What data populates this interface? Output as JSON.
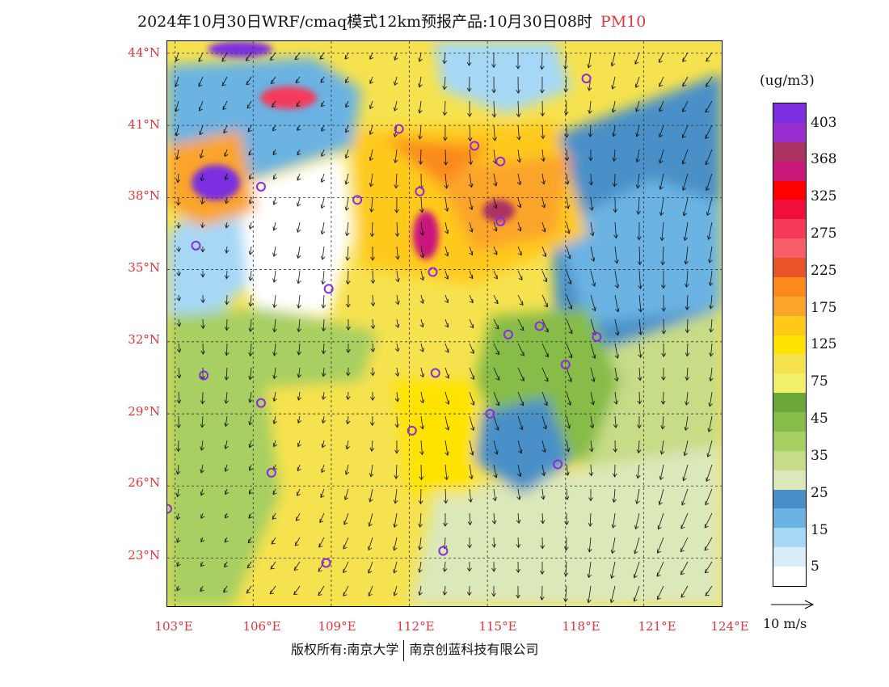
{
  "title": {
    "main": "2024年10月30日WRF/cmaq模式12km预报产品:10月30日08时",
    "pollutant": "PM10"
  },
  "axes": {
    "lat_labels": [
      "44°N",
      "41°N",
      "38°N",
      "35°N",
      "32°N",
      "29°N",
      "26°N",
      "23°N"
    ],
    "lon_labels": [
      "103°E",
      "106°E",
      "109°E",
      "112°E",
      "115°E",
      "118°E",
      "121°E",
      "124°E"
    ],
    "lat_range": [
      21,
      44.5
    ],
    "lon_range": [
      102.7,
      124
    ]
  },
  "colorbar": {
    "units": "(ug/m3)",
    "colors": [
      "#ffffff",
      "#d8ecfa",
      "#a6d8f5",
      "#6bb3e3",
      "#4a90c8",
      "#dbe8b8",
      "#c6dc86",
      "#a7cf62",
      "#86bc47",
      "#6aa83a",
      "#f2f06a",
      "#f6e24e",
      "#ffe300",
      "#ffc91a",
      "#fba42a",
      "#fb8a1a",
      "#e85428",
      "#f95d6a",
      "#f53a5a",
      "#f20e3c",
      "#ff0000",
      "#c9167b",
      "#ac3263",
      "#9a2ed0",
      "#7b2fe0"
    ],
    "labels": [
      "403",
      "368",
      "325",
      "275",
      "225",
      "175",
      "125",
      "75",
      "45",
      "35",
      "25",
      "15",
      "5"
    ]
  },
  "wind_scale_label": "10 m/s",
  "copyright": {
    "left": "版权所有:南京大学",
    "right": "南京创蓝科技有限公司"
  },
  "map_data": {
    "cities": [
      {
        "lon": 118.8,
        "lat": 42.95
      },
      {
        "lon": 111.6,
        "lat": 40.85
      },
      {
        "lon": 114.5,
        "lat": 40.15
      },
      {
        "lon": 115.5,
        "lat": 39.5
      },
      {
        "lon": 106.3,
        "lat": 38.45
      },
      {
        "lon": 110.0,
        "lat": 37.9
      },
      {
        "lon": 112.4,
        "lat": 38.25
      },
      {
        "lon": 115.5,
        "lat": 37.0
      },
      {
        "lon": 103.8,
        "lat": 36.0
      },
      {
        "lon": 112.9,
        "lat": 34.9
      },
      {
        "lon": 108.9,
        "lat": 34.2
      },
      {
        "lon": 117.0,
        "lat": 32.65
      },
      {
        "lon": 115.8,
        "lat": 32.3
      },
      {
        "lon": 119.2,
        "lat": 32.2
      },
      {
        "lon": 104.1,
        "lat": 30.6
      },
      {
        "lon": 113.0,
        "lat": 30.7
      },
      {
        "lon": 118.0,
        "lat": 31.05
      },
      {
        "lon": 106.3,
        "lat": 29.45
      },
      {
        "lon": 115.1,
        "lat": 29.0
      },
      {
        "lon": 112.1,
        "lat": 28.3
      },
      {
        "lon": 117.7,
        "lat": 26.9
      },
      {
        "lon": 106.7,
        "lat": 26.55
      },
      {
        "lon": 102.7,
        "lat": 25.05
      },
      {
        "lon": 113.3,
        "lat": 23.3
      },
      {
        "lon": 108.8,
        "lat": 22.8
      }
    ]
  }
}
